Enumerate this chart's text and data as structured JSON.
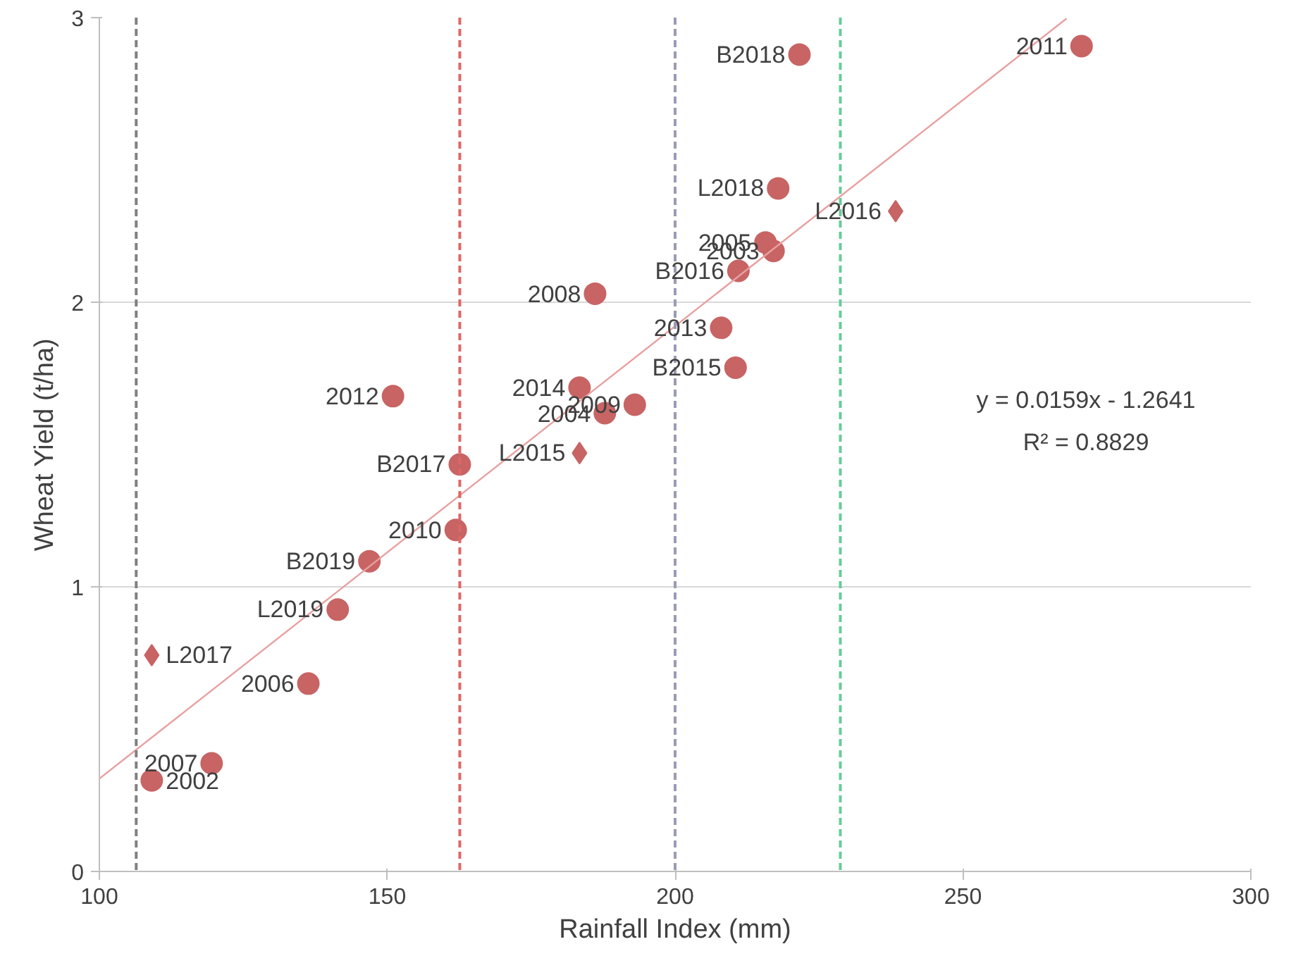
{
  "chart_data": {
    "type": "scatter",
    "xlabel": "Rainfall Index (mm)",
    "ylabel": "Wheat Yield (t/ha)",
    "xlim": [
      100,
      300
    ],
    "ylim": [
      0,
      3
    ],
    "xticks": [
      100,
      150,
      200,
      250,
      300
    ],
    "yticks": [
      0,
      1,
      2,
      3
    ],
    "grid": "y",
    "series": [
      {
        "color": "#c86464",
        "marker": "circle",
        "x": [
          270.6,
          221.6,
          217.9,
          215.7,
          217.1,
          211.0,
          186.1,
          208.0,
          210.5,
          151.0,
          183.4,
          193.0,
          187.8,
          162.6,
          161.9,
          146.9,
          141.4,
          136.3,
          119.5,
          109.1
        ],
        "values": [
          2.9,
          2.87,
          2.4,
          2.21,
          2.18,
          2.11,
          2.03,
          1.91,
          1.77,
          1.67,
          1.7,
          1.64,
          1.61,
          1.43,
          1.2,
          1.09,
          0.92,
          0.66,
          0.38,
          0.32
        ]
      },
      {
        "color": "#c86464",
        "marker": "diamond",
        "x": [
          238.3,
          183.4,
          109.1
        ],
        "values": [
          2.32,
          1.47,
          0.76
        ]
      },
      {
        "type": "line",
        "color": "#e8a0a0",
        "marker": "none",
        "x": [
          100,
          268
        ],
        "values": [
          0.326,
          2.997
        ]
      }
    ],
    "ref_lines": [
      {
        "axis": "x",
        "value": 106.4,
        "color": "#808080",
        "line_style": "dashed"
      },
      {
        "axis": "x",
        "value": 162.6,
        "color": "#e06666",
        "line_style": "dashed"
      },
      {
        "axis": "x",
        "value": 200,
        "color": "#9a9ab8",
        "line_style": "dashed"
      },
      {
        "axis": "x",
        "value": 228.7,
        "color": "#66cc99",
        "line_style": "dashed"
      }
    ],
    "annotations": [
      {
        "text": "2011",
        "x": 270.6,
        "y": 2.9
      },
      {
        "text": "B2018",
        "x": 221.6,
        "y": 2.87
      },
      {
        "text": "L2018",
        "x": 217.9,
        "y": 2.4
      },
      {
        "text": "L2016",
        "x": 238.3,
        "y": 2.32
      },
      {
        "text": "2005",
        "x": 215.7,
        "y": 2.21
      },
      {
        "text": "2003",
        "x": 217.1,
        "y": 2.18
      },
      {
        "text": "B2016",
        "x": 211.0,
        "y": 2.11
      },
      {
        "text": "2008",
        "x": 186.1,
        "y": 2.03
      },
      {
        "text": "2013",
        "x": 208.0,
        "y": 1.91
      },
      {
        "text": "B2015",
        "x": 210.5,
        "y": 1.77
      },
      {
        "text": "2012",
        "x": 151.0,
        "y": 1.67
      },
      {
        "text": "2014",
        "x": 183.4,
        "y": 1.7
      },
      {
        "text": "2009",
        "x": 193.0,
        "y": 1.64
      },
      {
        "text": "2004",
        "x": 187.8,
        "y": 1.61
      },
      {
        "text": "L2015",
        "x": 183.4,
        "y": 1.47
      },
      {
        "text": "B2017",
        "x": 162.6,
        "y": 1.43
      },
      {
        "text": "2010",
        "x": 161.9,
        "y": 1.2
      },
      {
        "text": "B2019",
        "x": 146.9,
        "y": 1.09
      },
      {
        "text": "L2019",
        "x": 141.4,
        "y": 0.92
      },
      {
        "text": "L2017",
        "x": 109.1,
        "y": 0.76
      },
      {
        "text": "2006",
        "x": 136.3,
        "y": 0.66
      },
      {
        "text": "2007",
        "x": 119.5,
        "y": 0.38
      },
      {
        "text": "2002",
        "x": 109.1,
        "y": 0.32
      },
      "y = 0.0159x - 1.2641",
      "R² = 0.8829"
    ]
  }
}
